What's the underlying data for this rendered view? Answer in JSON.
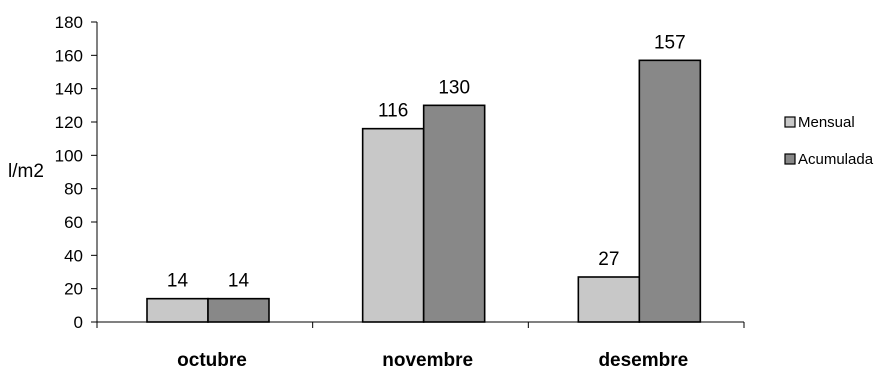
{
  "chart_data": {
    "type": "bar",
    "title": "",
    "xlabel": "",
    "ylabel": "l/m2",
    "ylim": [
      0,
      180
    ],
    "yticks": [
      0,
      20,
      40,
      60,
      80,
      100,
      120,
      140,
      160,
      180
    ],
    "categories": [
      "octubre",
      "novembre",
      "desembre"
    ],
    "series": [
      {
        "name": "Mensual",
        "values": [
          14,
          116,
          27
        ],
        "color": "#c8c8c8"
      },
      {
        "name": "Acumulada",
        "values": [
          14,
          130,
          157
        ],
        "color": "#888888"
      }
    ],
    "legend_position": "right",
    "grid": false
  }
}
